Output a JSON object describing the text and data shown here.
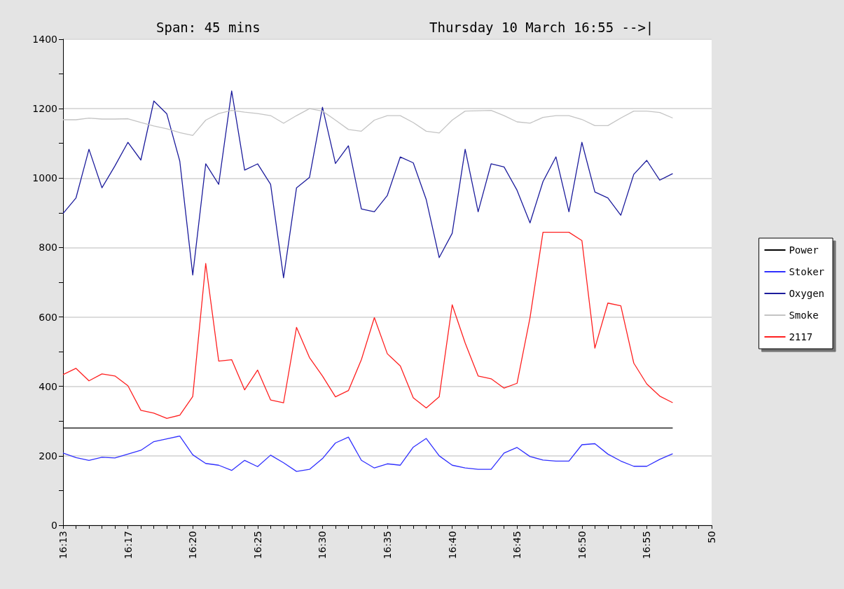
{
  "chart_data": {
    "type": "line",
    "title": "Span: 45 mins",
    "subtitle": "Thursday 10 March 16:55 -->|",
    "categories": [
      "16:13",
      null,
      null,
      null,
      null,
      "16:17",
      null,
      null,
      null,
      null,
      "16:20",
      null,
      null,
      null,
      null,
      "16:25",
      null,
      null,
      null,
      null,
      "16:30",
      null,
      null,
      null,
      null,
      "16:35",
      null,
      null,
      null,
      null,
      "16:40",
      null,
      null,
      null,
      null,
      "16:45",
      null,
      null,
      null,
      null,
      "16:50",
      null,
      null,
      null,
      null,
      "16:55",
      null,
      null,
      null,
      null,
      "50"
    ],
    "ylim": [
      0,
      1400
    ],
    "yticks": [
      0,
      200,
      400,
      600,
      800,
      1000,
      1200,
      1400
    ],
    "grid": "y",
    "legend": "right",
    "marker": "none",
    "line_style": "solid",
    "series": [
      {
        "name": "Power",
        "color": "#000000",
        "values": [
          280,
          280,
          280,
          280,
          280,
          280,
          280,
          280,
          280,
          280,
          280,
          280,
          280,
          280,
          280,
          280,
          280,
          280,
          280,
          280,
          280,
          280,
          280,
          280,
          280,
          280,
          280,
          280,
          280,
          280,
          280,
          280,
          280,
          280,
          280,
          280,
          280,
          280,
          280,
          280,
          280,
          280,
          280,
          280,
          280,
          280,
          280,
          280,
          null,
          null,
          null
        ]
      },
      {
        "name": "Stoker",
        "color": "#3030ff",
        "values": [
          208,
          195,
          187,
          196,
          194,
          205,
          216,
          241,
          249,
          257,
          203,
          178,
          173,
          158,
          187,
          169,
          202,
          180,
          155,
          161,
          192,
          237,
          254,
          187,
          165,
          177,
          173,
          225,
          250,
          200,
          173,
          165,
          161,
          161,
          208,
          224,
          198,
          188,
          185,
          185,
          232,
          235,
          205,
          185,
          170,
          170,
          190,
          206,
          null,
          null,
          null
        ]
      },
      {
        "name": "Oxygen",
        "color": "#1c1c9c",
        "values": [
          898,
          943,
          1083,
          972,
          1035,
          1103,
          1052,
          1222,
          1185,
          1049,
          721,
          1041,
          982,
          1251,
          1023,
          1041,
          982,
          713,
          972,
          1002,
          1204,
          1042,
          1093,
          911,
          903,
          950,
          1061,
          1044,
          938,
          771,
          841,
          1083,
          903,
          1041,
          1032,
          965,
          871,
          990,
          1061,
          903,
          1103,
          960,
          943,
          893,
          1011,
          1051,
          994,
          1013,
          null,
          null,
          null
        ]
      },
      {
        "name": "Smoke",
        "color": "#c4c4c4",
        "values": [
          1168,
          1168,
          1173,
          1170,
          1170,
          1171,
          1160,
          1150,
          1142,
          1131,
          1123,
          1167,
          1186,
          1195,
          1190,
          1186,
          1180,
          1158,
          1180,
          1200,
          1193,
          1167,
          1140,
          1135,
          1167,
          1180,
          1180,
          1160,
          1135,
          1130,
          1167,
          1193,
          1194,
          1195,
          1180,
          1162,
          1158,
          1175,
          1180,
          1180,
          1169,
          1151,
          1151,
          1173,
          1193,
          1193,
          1189,
          1173,
          null,
          null,
          null
        ]
      },
      {
        "name": "2117",
        "color": "#ff2020",
        "values": [
          434,
          452,
          416,
          436,
          430,
          402,
          331,
          323,
          308,
          317,
          371,
          754,
          473,
          477,
          390,
          447,
          361,
          353,
          570,
          483,
          430,
          370,
          388,
          477,
          598,
          494,
          459,
          367,
          338,
          370,
          635,
          525,
          430,
          422,
          395,
          409,
          598,
          844,
          844,
          844,
          820,
          510,
          640,
          632,
          467,
          407,
          372,
          353,
          null,
          null,
          null
        ]
      }
    ]
  }
}
